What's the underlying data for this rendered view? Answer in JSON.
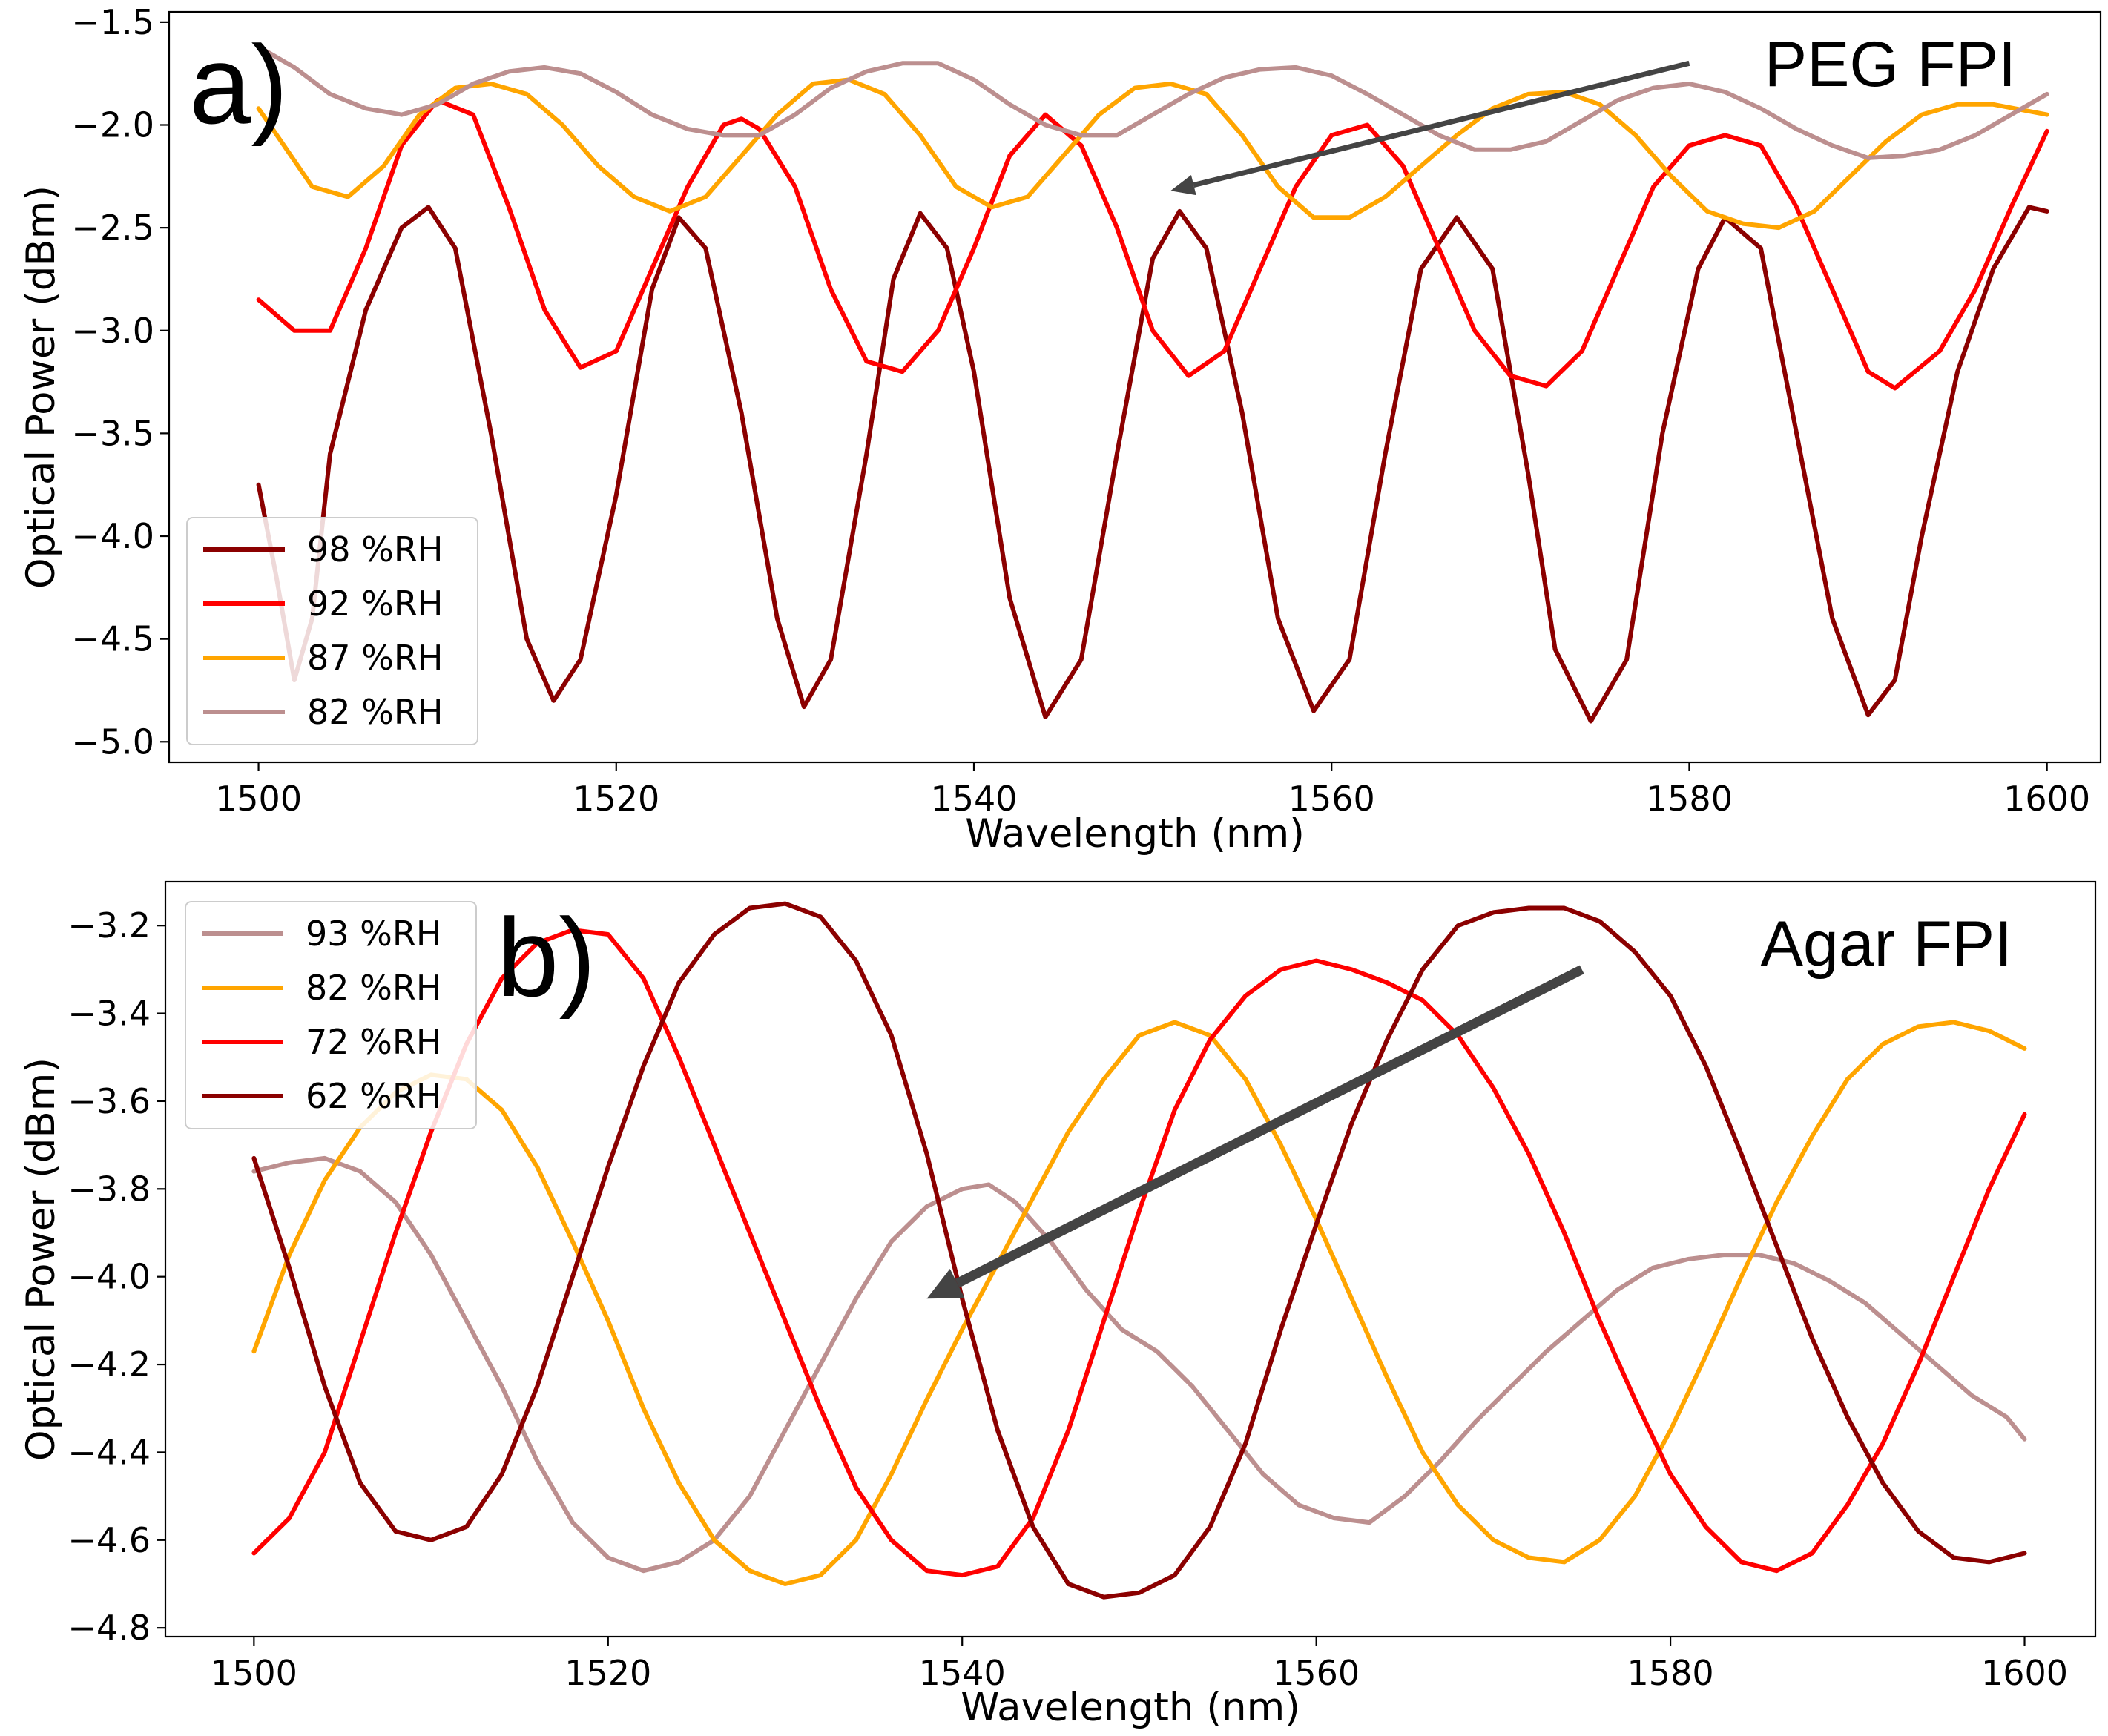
{
  "chart_data": [
    {
      "type": "line",
      "panel_label": "a)",
      "title": "PEG FPI",
      "xlabel": "Wavelength (nm)",
      "ylabel": "Optical Power (dBm)",
      "xlim": [
        1495,
        1603
      ],
      "ylim": [
        -5.1,
        -1.45
      ],
      "xticks": [
        1500,
        1520,
        1540,
        1560,
        1580,
        1600
      ],
      "yticks": [
        -5.0,
        -4.5,
        -4.0,
        -3.5,
        -3.0,
        -2.5,
        -2.0,
        -1.5
      ],
      "xtick_labels": [
        "1500",
        "1520",
        "1540",
        "1560",
        "1580",
        "1600"
      ],
      "ytick_labels": [
        "−5.0",
        "−4.5",
        "−4.0",
        "−3.5",
        "−3.0",
        "−2.5",
        "−2.0",
        "−1.5"
      ],
      "legend_position": "lower-left",
      "annotation": {
        "type": "arrow",
        "from": [
          1580,
          -1.7
        ],
        "to": [
          1551,
          -2.32
        ]
      },
      "series": [
        {
          "name": "98 %RH",
          "color": "#8b0000",
          "x": [
            1500,
            1501,
            1502,
            1503,
            1504,
            1506,
            1508,
            1509.5,
            1511,
            1513,
            1515,
            1516.5,
            1518,
            1520,
            1522,
            1523.5,
            1525,
            1527,
            1529,
            1530.5,
            1532,
            1534,
            1535.5,
            1537,
            1538.5,
            1540,
            1542,
            1544,
            1546,
            1548,
            1550,
            1551.5,
            1553,
            1555,
            1557,
            1559,
            1561,
            1563,
            1565,
            1567,
            1569,
            1571,
            1572.5,
            1574.5,
            1576.5,
            1578.5,
            1580.5,
            1582,
            1584,
            1586,
            1588,
            1590,
            1591.5,
            1593,
            1595,
            1597,
            1599,
            1600
          ],
          "y": [
            -3.75,
            -4.2,
            -4.7,
            -4.4,
            -3.6,
            -2.9,
            -2.5,
            -2.4,
            -2.6,
            -3.5,
            -4.5,
            -4.8,
            -4.6,
            -3.8,
            -2.8,
            -2.45,
            -2.6,
            -3.4,
            -4.4,
            -4.83,
            -4.6,
            -3.6,
            -2.75,
            -2.43,
            -2.6,
            -3.2,
            -4.3,
            -4.88,
            -4.6,
            -3.6,
            -2.65,
            -2.42,
            -2.6,
            -3.4,
            -4.4,
            -4.85,
            -4.6,
            -3.6,
            -2.7,
            -2.45,
            -2.7,
            -3.7,
            -4.55,
            -4.9,
            -4.6,
            -3.5,
            -2.7,
            -2.45,
            -2.6,
            -3.5,
            -4.4,
            -4.87,
            -4.7,
            -4.0,
            -3.2,
            -2.7,
            -2.4,
            -2.42
          ]
        },
        {
          "name": "92 %RH",
          "color": "#ff0000",
          "x": [
            1500,
            1502,
            1504,
            1506,
            1508,
            1510,
            1512,
            1514,
            1516,
            1518,
            1520,
            1522,
            1524,
            1526,
            1527,
            1528,
            1530,
            1532,
            1534,
            1536,
            1538,
            1540,
            1542,
            1544,
            1546,
            1548,
            1550,
            1552,
            1554,
            1556,
            1558,
            1560,
            1562,
            1564,
            1566,
            1568,
            1570,
            1572,
            1574,
            1576,
            1578,
            1580,
            1582,
            1584,
            1586,
            1588,
            1590,
            1591.5,
            1594,
            1596,
            1598,
            1600
          ],
          "y": [
            -2.85,
            -3.0,
            -3.0,
            -2.6,
            -2.1,
            -1.88,
            -1.95,
            -2.4,
            -2.9,
            -3.18,
            -3.1,
            -2.7,
            -2.3,
            -2.0,
            -1.97,
            -2.02,
            -2.3,
            -2.8,
            -3.15,
            -3.2,
            -3.0,
            -2.6,
            -2.15,
            -1.95,
            -2.1,
            -2.5,
            -3.0,
            -3.22,
            -3.1,
            -2.7,
            -2.3,
            -2.05,
            -2.0,
            -2.2,
            -2.6,
            -3.0,
            -3.22,
            -3.27,
            -3.1,
            -2.7,
            -2.3,
            -2.1,
            -2.05,
            -2.1,
            -2.4,
            -2.8,
            -3.2,
            -3.28,
            -3.1,
            -2.8,
            -2.4,
            -2.03
          ]
        },
        {
          "name": "87 %RH",
          "color": "#ffa500",
          "x": [
            1500,
            1503,
            1505,
            1507,
            1509,
            1511,
            1513,
            1515,
            1517,
            1519,
            1521,
            1523,
            1525,
            1527,
            1529,
            1531,
            1533,
            1535,
            1537,
            1539,
            1541,
            1543,
            1545,
            1547,
            1549,
            1551,
            1553,
            1555,
            1557,
            1559,
            1561,
            1563,
            1565,
            1567,
            1569,
            1571,
            1573,
            1575,
            1577,
            1579,
            1581,
            1583,
            1585,
            1587,
            1589,
            1591,
            1593,
            1595,
            1597,
            1600
          ],
          "y": [
            -1.92,
            -2.3,
            -2.35,
            -2.2,
            -1.95,
            -1.82,
            -1.8,
            -1.85,
            -2.0,
            -2.2,
            -2.35,
            -2.42,
            -2.35,
            -2.15,
            -1.95,
            -1.8,
            -1.78,
            -1.85,
            -2.05,
            -2.3,
            -2.4,
            -2.35,
            -2.15,
            -1.95,
            -1.82,
            -1.8,
            -1.85,
            -2.05,
            -2.3,
            -2.45,
            -2.45,
            -2.35,
            -2.2,
            -2.05,
            -1.92,
            -1.85,
            -1.84,
            -1.9,
            -2.05,
            -2.25,
            -2.42,
            -2.48,
            -2.5,
            -2.42,
            -2.25,
            -2.08,
            -1.95,
            -1.9,
            -1.9,
            -1.95
          ]
        },
        {
          "name": "82 %RH",
          "color": "#bc8f8f",
          "x": [
            1500,
            1502,
            1504,
            1506,
            1508,
            1510,
            1512,
            1514,
            1516,
            1518,
            1520,
            1522,
            1524,
            1526,
            1528,
            1530,
            1532,
            1534,
            1536,
            1538,
            1540,
            1542,
            1544,
            1546,
            1548,
            1550,
            1552,
            1554,
            1556,
            1558,
            1560,
            1562,
            1564,
            1566,
            1568,
            1570,
            1572,
            1574,
            1576,
            1578,
            1580,
            1582,
            1584,
            1586,
            1588,
            1590,
            1592,
            1594,
            1596,
            1598,
            1600
          ],
          "y": [
            -1.62,
            -1.72,
            -1.85,
            -1.92,
            -1.95,
            -1.9,
            -1.8,
            -1.74,
            -1.72,
            -1.75,
            -1.84,
            -1.95,
            -2.02,
            -2.05,
            -2.05,
            -1.95,
            -1.82,
            -1.74,
            -1.7,
            -1.7,
            -1.78,
            -1.9,
            -2.0,
            -2.05,
            -2.05,
            -1.95,
            -1.85,
            -1.77,
            -1.73,
            -1.72,
            -1.76,
            -1.85,
            -1.95,
            -2.05,
            -2.12,
            -2.12,
            -2.08,
            -1.98,
            -1.88,
            -1.82,
            -1.8,
            -1.84,
            -1.92,
            -2.02,
            -2.1,
            -2.16,
            -2.15,
            -2.12,
            -2.05,
            -1.95,
            -1.85
          ]
        }
      ]
    },
    {
      "type": "line",
      "panel_label": "b)",
      "title": "Agar FPI",
      "xlabel": "Wavelength (nm)",
      "ylabel": "Optical Power (dBm)",
      "xlim": [
        1495,
        1604
      ],
      "ylim": [
        -4.82,
        -3.1
      ],
      "xticks": [
        1500,
        1520,
        1540,
        1560,
        1580,
        1600
      ],
      "yticks": [
        -4.8,
        -4.6,
        -4.4,
        -4.2,
        -4.0,
        -3.8,
        -3.6,
        -3.4,
        -3.2
      ],
      "xtick_labels": [
        "1500",
        "1520",
        "1540",
        "1560",
        "1580",
        "1600"
      ],
      "ytick_labels": [
        "−4.8",
        "−4.6",
        "−4.4",
        "−4.2",
        "−4.0",
        "−3.8",
        "−3.6",
        "−3.4",
        "−3.2"
      ],
      "legend_position": "upper-left",
      "annotation": {
        "type": "arrow",
        "from": [
          1575,
          -3.3
        ],
        "to": [
          1538,
          -4.05
        ]
      },
      "series": [
        {
          "name": "93 %RH",
          "color": "#bc8f8f",
          "x": [
            1500,
            1502,
            1504,
            1506,
            1508,
            1510,
            1512,
            1514,
            1516,
            1518,
            1520,
            1522,
            1524,
            1526,
            1528,
            1530,
            1532,
            1534,
            1536,
            1538,
            1540,
            1541.5,
            1543,
            1545,
            1547,
            1549,
            1551,
            1553,
            1555,
            1557,
            1559,
            1561,
            1563,
            1565,
            1567,
            1569,
            1571,
            1573,
            1575,
            1577,
            1579,
            1581,
            1583,
            1585,
            1587,
            1589,
            1591,
            1593,
            1595,
            1597,
            1599,
            1600
          ],
          "y": [
            -3.76,
            -3.74,
            -3.73,
            -3.76,
            -3.83,
            -3.95,
            -4.1,
            -4.25,
            -4.42,
            -4.56,
            -4.64,
            -4.67,
            -4.65,
            -4.6,
            -4.5,
            -4.35,
            -4.2,
            -4.05,
            -3.92,
            -3.84,
            -3.8,
            -3.79,
            -3.83,
            -3.92,
            -4.03,
            -4.12,
            -4.17,
            -4.25,
            -4.35,
            -4.45,
            -4.52,
            -4.55,
            -4.56,
            -4.5,
            -4.42,
            -4.33,
            -4.25,
            -4.17,
            -4.1,
            -4.03,
            -3.98,
            -3.96,
            -3.95,
            -3.95,
            -3.97,
            -4.01,
            -4.06,
            -4.13,
            -4.2,
            -4.27,
            -4.32,
            -4.37
          ]
        },
        {
          "name": "82 %RH",
          "color": "#ffa500",
          "x": [
            1500,
            1502,
            1504,
            1506,
            1508,
            1510,
            1512,
            1514,
            1516,
            1518,
            1520,
            1522,
            1524,
            1526,
            1528,
            1530,
            1532,
            1534,
            1536,
            1538,
            1540,
            1542,
            1544,
            1546,
            1548,
            1550,
            1552,
            1554,
            1556,
            1558,
            1560,
            1562,
            1564,
            1566,
            1568,
            1570,
            1572,
            1574,
            1576,
            1578,
            1580,
            1582,
            1584,
            1586,
            1588,
            1590,
            1592,
            1594,
            1596,
            1598,
            1600
          ],
          "y": [
            -4.17,
            -3.95,
            -3.78,
            -3.66,
            -3.58,
            -3.54,
            -3.55,
            -3.62,
            -3.75,
            -3.92,
            -4.1,
            -4.3,
            -4.47,
            -4.6,
            -4.67,
            -4.7,
            -4.68,
            -4.6,
            -4.45,
            -4.28,
            -4.12,
            -3.97,
            -3.82,
            -3.67,
            -3.55,
            -3.45,
            -3.42,
            -3.45,
            -3.55,
            -3.7,
            -3.87,
            -4.05,
            -4.23,
            -4.4,
            -4.52,
            -4.6,
            -4.64,
            -4.65,
            -4.6,
            -4.5,
            -4.35,
            -4.18,
            -4.0,
            -3.83,
            -3.68,
            -3.55,
            -3.47,
            -3.43,
            -3.42,
            -3.44,
            -3.48
          ]
        },
        {
          "name": "72 %RH",
          "color": "#ff0000",
          "x": [
            1500,
            1502,
            1504,
            1506,
            1508,
            1510,
            1512,
            1514,
            1516,
            1518,
            1520,
            1522,
            1524,
            1526,
            1528,
            1530,
            1532,
            1534,
            1536,
            1538,
            1540,
            1542,
            1544,
            1546,
            1548,
            1550,
            1552,
            1554,
            1556,
            1558,
            1560,
            1562,
            1564,
            1566,
            1568,
            1570,
            1572,
            1574,
            1576,
            1578,
            1580,
            1582,
            1584,
            1586,
            1588,
            1590,
            1592,
            1594,
            1596,
            1598,
            1600
          ],
          "y": [
            -4.63,
            -4.55,
            -4.4,
            -4.15,
            -3.9,
            -3.67,
            -3.47,
            -3.32,
            -3.24,
            -3.21,
            -3.22,
            -3.32,
            -3.5,
            -3.7,
            -3.9,
            -4.1,
            -4.3,
            -4.48,
            -4.6,
            -4.67,
            -4.68,
            -4.66,
            -4.55,
            -4.35,
            -4.1,
            -3.85,
            -3.62,
            -3.46,
            -3.36,
            -3.3,
            -3.28,
            -3.3,
            -3.33,
            -3.37,
            -3.45,
            -3.57,
            -3.72,
            -3.9,
            -4.1,
            -4.28,
            -4.45,
            -4.57,
            -4.65,
            -4.67,
            -4.63,
            -4.52,
            -4.38,
            -4.2,
            -4.0,
            -3.8,
            -3.63
          ]
        },
        {
          "name": "62 %RH",
          "color": "#8b0000",
          "x": [
            1500,
            1502,
            1504,
            1506,
            1508,
            1510,
            1512,
            1514,
            1516,
            1518,
            1520,
            1522,
            1524,
            1526,
            1528,
            1530,
            1532,
            1534,
            1536,
            1538,
            1540,
            1542,
            1544,
            1546,
            1548,
            1550,
            1552,
            1554,
            1556,
            1558,
            1560,
            1562,
            1564,
            1566,
            1568,
            1570,
            1572,
            1574,
            1576,
            1578,
            1580,
            1582,
            1584,
            1586,
            1588,
            1590,
            1592,
            1594,
            1596,
            1598,
            1600
          ],
          "y": [
            -3.73,
            -3.98,
            -4.25,
            -4.47,
            -4.58,
            -4.6,
            -4.57,
            -4.45,
            -4.25,
            -4.0,
            -3.75,
            -3.52,
            -3.33,
            -3.22,
            -3.16,
            -3.15,
            -3.18,
            -3.28,
            -3.45,
            -3.72,
            -4.05,
            -4.35,
            -4.57,
            -4.7,
            -4.73,
            -4.72,
            -4.68,
            -4.57,
            -4.38,
            -4.12,
            -3.88,
            -3.65,
            -3.46,
            -3.3,
            -3.2,
            -3.17,
            -3.16,
            -3.16,
            -3.19,
            -3.26,
            -3.36,
            -3.52,
            -3.72,
            -3.93,
            -4.14,
            -4.32,
            -4.47,
            -4.58,
            -4.64,
            -4.65,
            -4.63
          ]
        }
      ]
    }
  ]
}
